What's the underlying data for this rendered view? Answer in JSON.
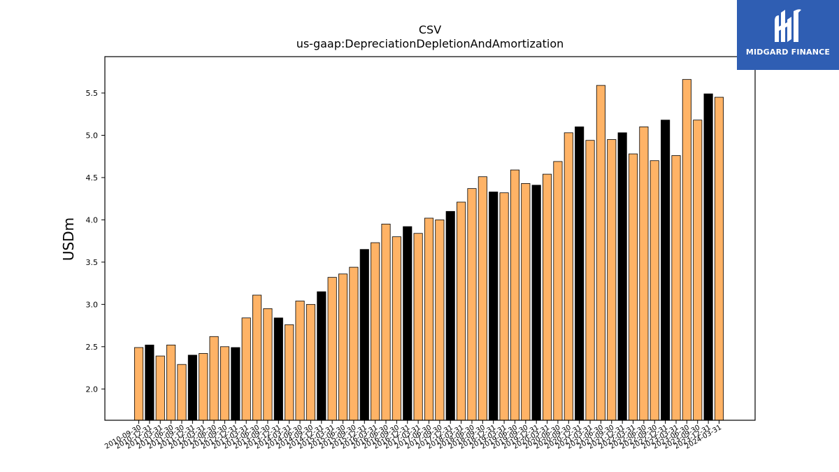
{
  "logo": {
    "text": "MIDGARD FINANCE"
  },
  "colors": {
    "bar_default": "#ffb366",
    "bar_highlight": "#000000",
    "edge": "#000000",
    "logo_bg": "#2f5eb3"
  },
  "chart_data": {
    "type": "bar",
    "title": "CSV",
    "subtitle": "us-gaap:DepreciationDepletionAndAmortization",
    "xlabel": "",
    "ylabel": "USDm",
    "ylim": [
      1.63,
      5.93
    ],
    "yticks": [
      2.0,
      2.5,
      3.0,
      3.5,
      4.0,
      4.5,
      5.0,
      5.5
    ],
    "ytick_labels": [
      "2.0",
      "2.5",
      "3.0",
      "3.5",
      "4.0",
      "4.5",
      "5.0",
      "5.5"
    ],
    "grid": false,
    "legend": "none",
    "categories": [
      "2010-09-30",
      "2010-12-31",
      "2011-03-31",
      "2011-06-30",
      "2011-09-30",
      "2011-12-31",
      "2012-03-31",
      "2012-06-30",
      "2012-09-30",
      "2012-12-31",
      "2013-03-31",
      "2013-06-30",
      "2013-09-30",
      "2013-12-31",
      "2014-03-31",
      "2014-06-30",
      "2014-09-30",
      "2014-12-31",
      "2015-03-31",
      "2015-06-30",
      "2015-09-30",
      "2015-12-31",
      "2016-03-31",
      "2016-06-30",
      "2016-09-30",
      "2016-12-31",
      "2017-03-31",
      "2017-06-30",
      "2017-09-30",
      "2017-12-31",
      "2018-03-31",
      "2018-06-30",
      "2018-09-30",
      "2018-12-31",
      "2019-03-31",
      "2019-06-30",
      "2019-09-30",
      "2019-12-31",
      "2020-03-31",
      "2020-06-30",
      "2020-09-30",
      "2020-12-31",
      "2021-03-31",
      "2021-06-30",
      "2021-09-30",
      "2021-12-31",
      "2022-03-31",
      "2022-06-30",
      "2022-09-30",
      "2022-12-31",
      "2023-03-31",
      "2023-06-30",
      "2023-09-30",
      "2023-12-31",
      "2024-03-31"
    ],
    "values": [
      2.49,
      2.52,
      2.39,
      2.52,
      2.29,
      2.4,
      2.42,
      2.62,
      2.5,
      2.49,
      2.84,
      3.11,
      2.95,
      2.84,
      2.76,
      3.04,
      3.0,
      3.15,
      3.32,
      3.36,
      3.44,
      3.65,
      3.73,
      3.95,
      3.8,
      3.92,
      3.84,
      4.02,
      4.0,
      4.1,
      4.21,
      4.37,
      4.51,
      4.33,
      4.32,
      4.59,
      4.43,
      4.41,
      4.54,
      4.69,
      5.03,
      5.1,
      4.94,
      5.59,
      4.95,
      5.03,
      4.78,
      5.1,
      4.7,
      5.18,
      4.76,
      5.66,
      5.18,
      5.49,
      5.45
    ],
    "highlight_categories": [
      "2010-12-31",
      "2011-12-31",
      "2012-12-31",
      "2013-12-31",
      "2014-12-31",
      "2015-12-31",
      "2016-12-31",
      "2017-12-31",
      "2018-12-31",
      "2019-12-31",
      "2020-12-31",
      "2021-12-31",
      "2022-12-31",
      "2023-12-31"
    ]
  }
}
